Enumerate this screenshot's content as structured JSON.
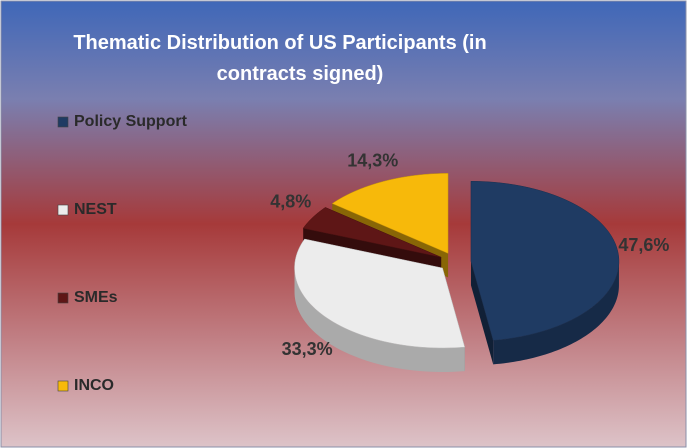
{
  "chart_data": {
    "type": "pie3d",
    "title": "Thematic Distribution of US Participants (in contracts signed)",
    "categories": [
      "Policy Support",
      "NEST",
      "SMEs",
      "INCO"
    ],
    "values": [
      47.6,
      33.3,
      4.8,
      14.3
    ],
    "value_labels": [
      "47,6%",
      "33,3%",
      "4,8%",
      "14,3%"
    ],
    "colors": [
      "#1f3b63",
      "#ececec",
      "#5e1616",
      "#f7b90a"
    ],
    "legend": "left"
  }
}
